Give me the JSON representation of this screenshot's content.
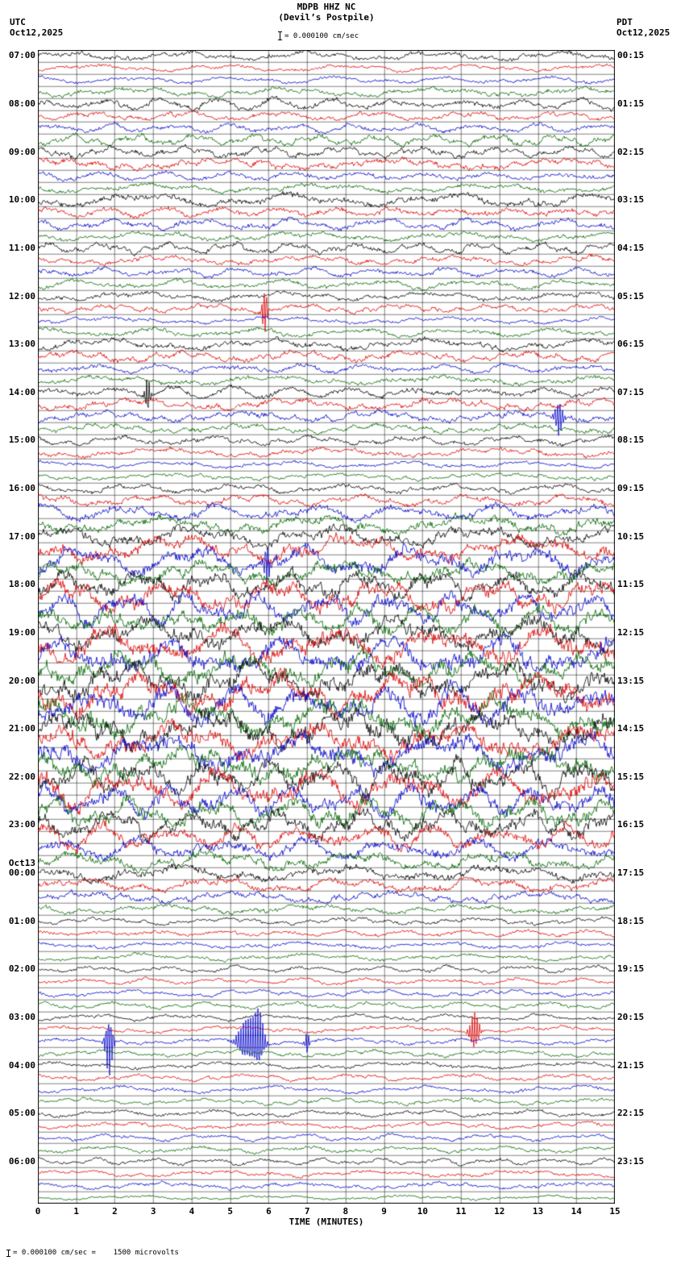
{
  "header": {
    "station": "MDPB HHZ NC",
    "location": "(Devil’s Postpile)",
    "tz_left": "UTC",
    "date_left": "Oct12,2025",
    "tz_right": "PDT",
    "date_right": "Oct12,2025",
    "scale_label": "= 0.000100 cm/sec"
  },
  "footer": {
    "scale_note": "= 0.000100 cm/sec =    1500 microvolts"
  },
  "x_axis": {
    "title": "TIME (MINUTES)",
    "ticks": [
      "0",
      "1",
      "2",
      "3",
      "4",
      "5",
      "6",
      "7",
      "8",
      "9",
      "10",
      "11",
      "12",
      "13",
      "14",
      "15"
    ]
  },
  "left_labels": [
    {
      "text": "07:00"
    },
    {
      "text": "08:00"
    },
    {
      "text": "09:00"
    },
    {
      "text": "10:00"
    },
    {
      "text": "11:00"
    },
    {
      "text": "12:00"
    },
    {
      "text": "13:00"
    },
    {
      "text": "14:00"
    },
    {
      "text": "15:00"
    },
    {
      "text": "16:00"
    },
    {
      "text": "17:00"
    },
    {
      "text": "18:00"
    },
    {
      "text": "19:00"
    },
    {
      "text": "20:00"
    },
    {
      "text": "21:00"
    },
    {
      "text": "22:00"
    },
    {
      "text": "23:00"
    },
    {
      "prefix": "Oct13",
      "text": "00:00"
    },
    {
      "text": "01:00"
    },
    {
      "text": "02:00"
    },
    {
      "text": "03:00"
    },
    {
      "text": "04:00"
    },
    {
      "text": "05:00"
    },
    {
      "text": "06:00"
    }
  ],
  "right_labels": [
    "00:15",
    "01:15",
    "02:15",
    "03:15",
    "04:15",
    "05:15",
    "06:15",
    "07:15",
    "08:15",
    "09:15",
    "10:15",
    "11:15",
    "12:15",
    "13:15",
    "14:15",
    "15:15",
    "16:15",
    "17:15",
    "18:15",
    "19:15",
    "20:15",
    "21:15",
    "22:15",
    "23:15"
  ],
  "chart_data": {
    "type": "line",
    "title": "MDPB HHZ NC (Devil’s Postpile) helicorder",
    "xlabel": "TIME (MINUTES)",
    "xlim": [
      0,
      15
    ],
    "rows": 96,
    "row_minutes": 15,
    "grid": true,
    "trace_colors": [
      "#000000",
      "#dd0000",
      "#0000cc",
      "#006600"
    ],
    "row_amplitudes": [
      4,
      3,
      3,
      4,
      5,
      4,
      4,
      5,
      5,
      5,
      4,
      4,
      6,
      5,
      5,
      4,
      5,
      4,
      4,
      4,
      4,
      4,
      3,
      4,
      5,
      5,
      4,
      4,
      5,
      5,
      5,
      4,
      4,
      4,
      3,
      3,
      4,
      5,
      7,
      8,
      9,
      11,
      12,
      10,
      12,
      14,
      13,
      12,
      14,
      16,
      15,
      14,
      16,
      18,
      17,
      16,
      16,
      15,
      16,
      14,
      15,
      16,
      14,
      13,
      12,
      11,
      9,
      8,
      7,
      6,
      5,
      4,
      3,
      3,
      3,
      3,
      3,
      3,
      3,
      3,
      3,
      3,
      3,
      3,
      3,
      3,
      3,
      3,
      3,
      3,
      3,
      3,
      3,
      3,
      3,
      2
    ],
    "events": [
      {
        "row": 21,
        "x": 5.9,
        "amp": 30,
        "sigma": 0.05
      },
      {
        "row": 28,
        "x": 2.85,
        "amp": 24,
        "sigma": 0.05
      },
      {
        "row": 30,
        "x": 13.55,
        "amp": 22,
        "sigma": 0.08
      },
      {
        "row": 42,
        "x": 5.95,
        "amp": 30,
        "sigma": 0.05
      },
      {
        "row": 82,
        "x": 1.85,
        "amp": 42,
        "sigma": 0.07
      },
      {
        "row": 82,
        "x": 5.45,
        "amp": 28,
        "sigma": 0.18
      },
      {
        "row": 82,
        "x": 5.75,
        "amp": 34,
        "sigma": 0.1
      },
      {
        "row": 82,
        "x": 7.0,
        "amp": 14,
        "sigma": 0.04
      },
      {
        "row": 81,
        "x": 11.35,
        "amp": 26,
        "sigma": 0.09
      }
    ]
  }
}
